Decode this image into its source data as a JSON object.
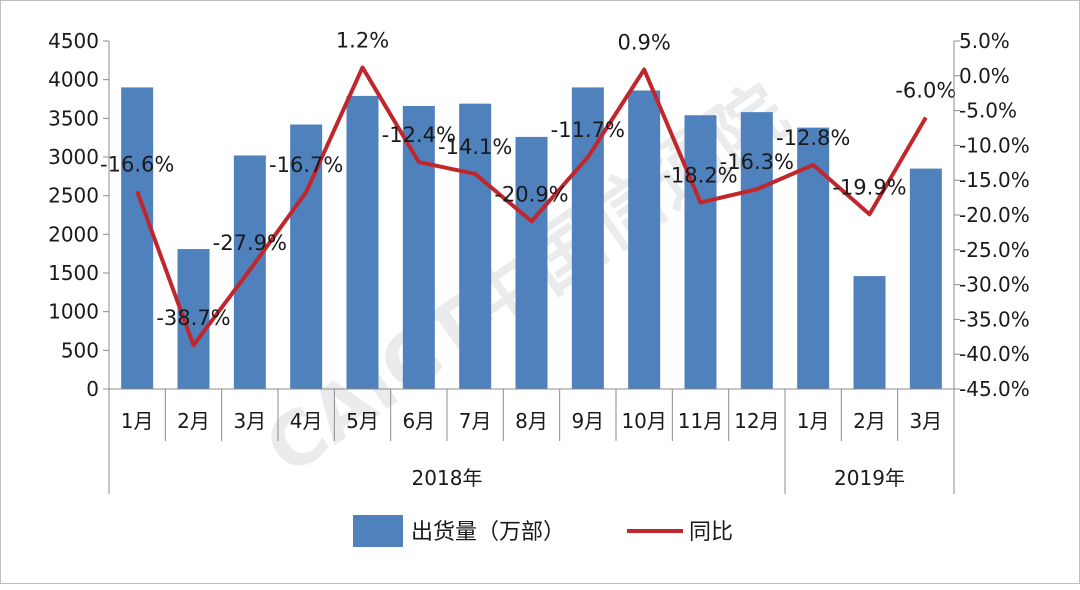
{
  "watermark": "CAICT中国信通院",
  "chart_data": {
    "type": "bar",
    "categories": [
      "1月",
      "2月",
      "3月",
      "4月",
      "5月",
      "6月",
      "7月",
      "8月",
      "9月",
      "10月",
      "11月",
      "12月",
      "1月",
      "2月",
      "3月"
    ],
    "groups": [
      {
        "label": "2018年",
        "span": 12
      },
      {
        "label": "2019年",
        "span": 3
      }
    ],
    "series": [
      {
        "name": "出货量（万部）",
        "type": "bar",
        "axis": "left",
        "color": "#4f81bd",
        "values": [
          3900,
          1810,
          3020,
          3420,
          3790,
          3660,
          3690,
          3260,
          3900,
          3860,
          3540,
          3580,
          3380,
          1460,
          2850
        ]
      },
      {
        "name": "同比",
        "type": "line",
        "axis": "right",
        "color": "#c0272d",
        "values": [
          -16.6,
          -38.7,
          -27.9,
          -16.7,
          1.2,
          -12.4,
          -14.1,
          -20.9,
          -11.7,
          0.9,
          -18.2,
          -16.3,
          -12.8,
          -19.9,
          -6.0
        ],
        "labels": [
          "-16.6%",
          "-38.7%",
          "-27.9%",
          "-16.7%",
          "1.2%",
          "-12.4%",
          "-14.1%",
          "-20.9%",
          "-11.7%",
          "0.9%",
          "-18.2%",
          "-16.3%",
          "-12.8%",
          "-19.9%",
          "-6.0%"
        ]
      }
    ],
    "yleft": {
      "min": 0,
      "max": 4500,
      "step": 500
    },
    "yright": {
      "min": -45,
      "max": 5,
      "step": 5,
      "suffix": "%"
    },
    "legend_position": "bottom",
    "grid": false
  }
}
